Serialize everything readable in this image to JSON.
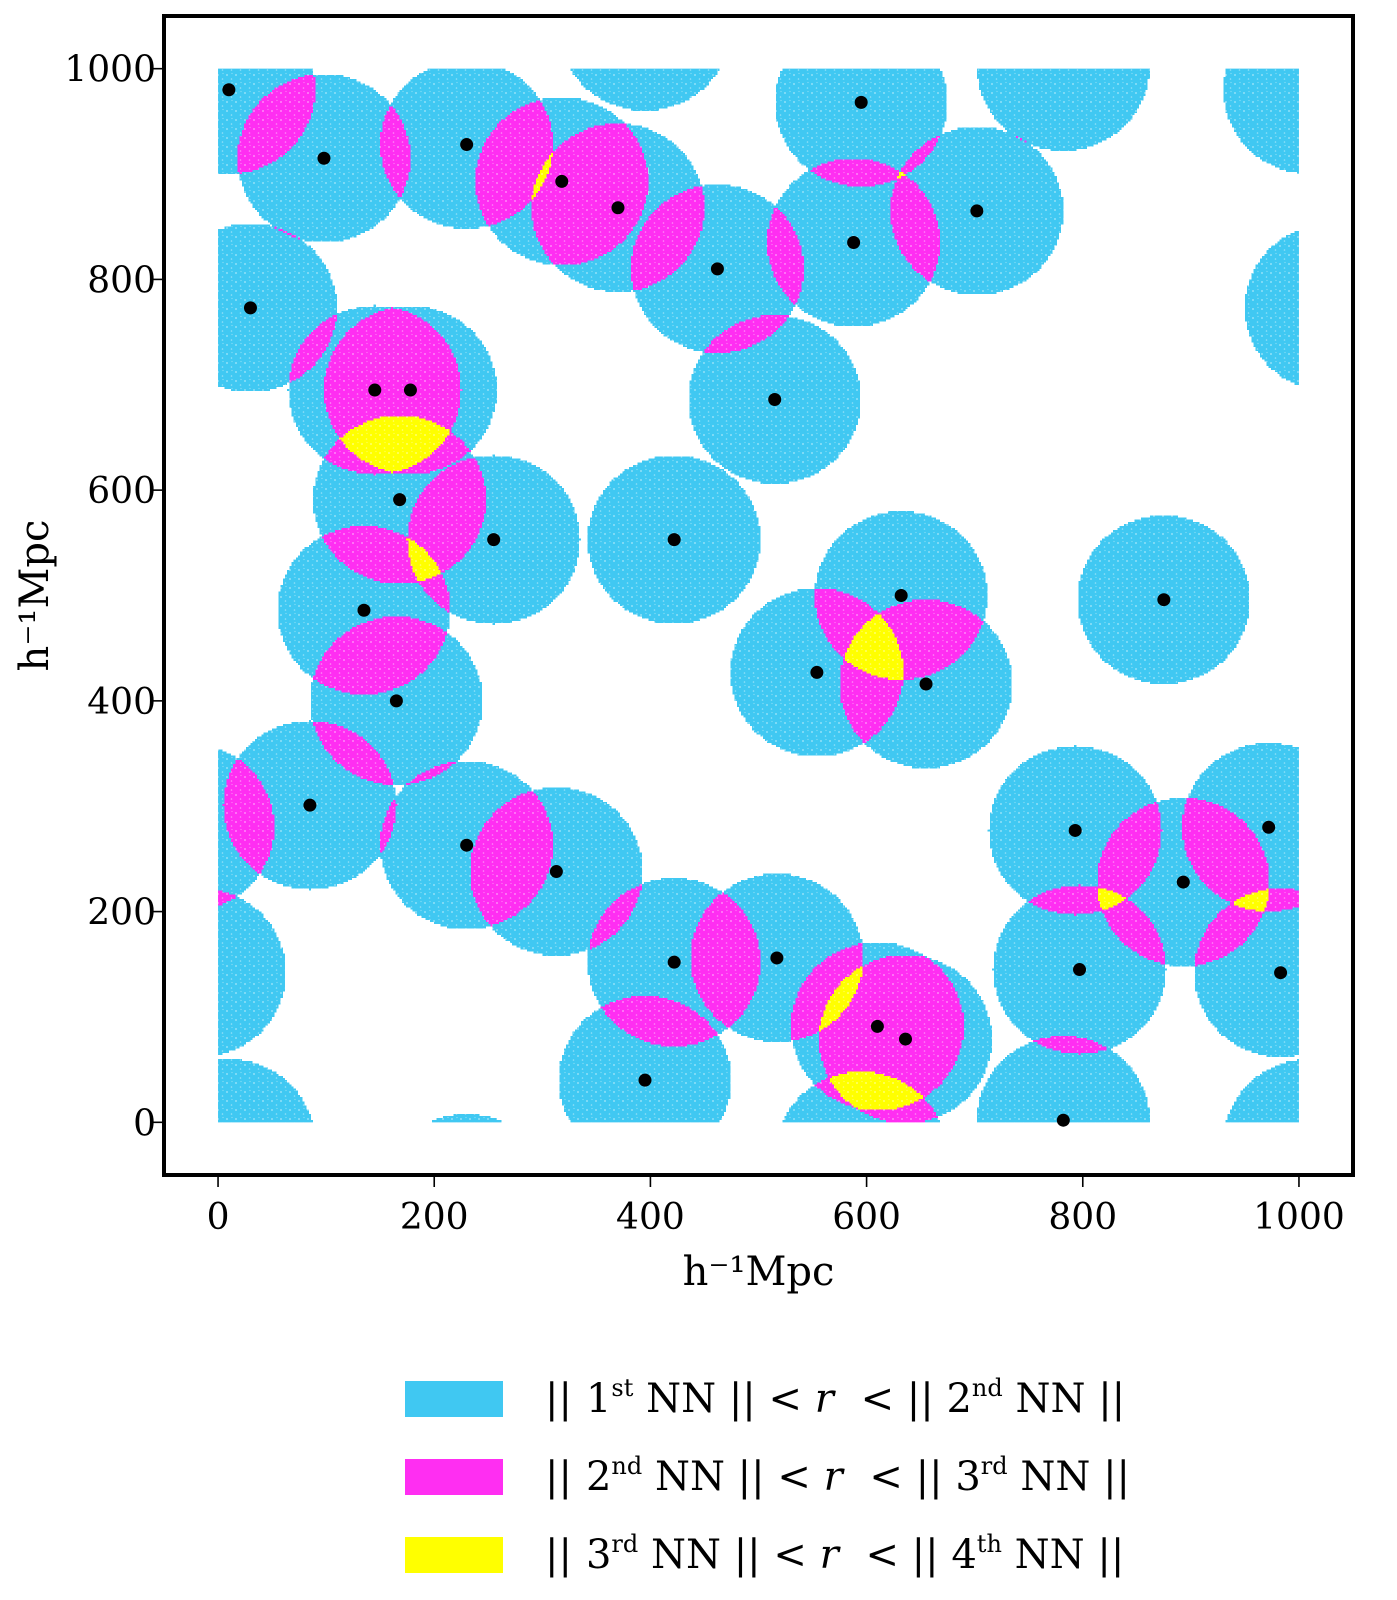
{
  "chart_data": {
    "type": "scatter",
    "title": "",
    "xlabel": "h⁻¹Mpc",
    "ylabel": "h⁻¹Mpc",
    "xlim": [
      -50,
      1050
    ],
    "ylim": [
      -50,
      1050
    ],
    "xticks": [
      "0",
      "200",
      "400",
      "600",
      "800",
      "1000"
    ],
    "yticks": [
      "0",
      "200",
      "400",
      "600",
      "800",
      "1000"
    ],
    "xtick_values": [
      0,
      200,
      400,
      600,
      800,
      1000
    ],
    "ytick_values": [
      0,
      200,
      400,
      600,
      800,
      1000
    ],
    "box": [
      0,
      1000
    ],
    "sphere_radius": 80,
    "grid": false,
    "colors": {
      "nn1": "#40c8f2",
      "nn2": "#ff2ef2",
      "nn3": "#ffff00",
      "points": "#000000",
      "background": "#ffffff"
    },
    "legend": [
      {
        "color": "#40c8f2",
        "a_ord": "1",
        "a_suf": "st",
        "b_ord": "2",
        "b_suf": "nd"
      },
      {
        "color": "#ff2ef2",
        "a_ord": "2",
        "a_suf": "nd",
        "b_ord": "3",
        "b_suf": "rd"
      },
      {
        "color": "#ffff00",
        "a_ord": "3",
        "a_suf": "rd",
        "b_ord": "4",
        "b_suf": "th"
      }
    ],
    "legend_words": {
      "open": "||",
      "nn": "NN",
      "lt": "<",
      "var": "r"
    },
    "points": [
      {
        "x": 10,
        "y": 980
      },
      {
        "x": 98,
        "y": 915
      },
      {
        "x": 230,
        "y": 928
      },
      {
        "x": 318,
        "y": 893
      },
      {
        "x": 370,
        "y": 868
      },
      {
        "x": 595,
        "y": 968
      },
      {
        "x": 702,
        "y": 865
      },
      {
        "x": 588,
        "y": 835
      },
      {
        "x": 462,
        "y": 810
      },
      {
        "x": 30,
        "y": 773
      },
      {
        "x": 145,
        "y": 695
      },
      {
        "x": 178,
        "y": 695
      },
      {
        "x": 515,
        "y": 686
      },
      {
        "x": 168,
        "y": 591
      },
      {
        "x": 255,
        "y": 553
      },
      {
        "x": 422,
        "y": 553
      },
      {
        "x": 632,
        "y": 500
      },
      {
        "x": 875,
        "y": 496
      },
      {
        "x": 135,
        "y": 486
      },
      {
        "x": 554,
        "y": 427
      },
      {
        "x": 655,
        "y": 416
      },
      {
        "x": 165,
        "y": 400
      },
      {
        "x": 85,
        "y": 301
      },
      {
        "x": 793,
        "y": 277
      },
      {
        "x": 972,
        "y": 280
      },
      {
        "x": 230,
        "y": 263
      },
      {
        "x": 313,
        "y": 238
      },
      {
        "x": 893,
        "y": 228
      },
      {
        "x": 422,
        "y": 152
      },
      {
        "x": 517,
        "y": 156
      },
      {
        "x": 797,
        "y": 145
      },
      {
        "x": 983,
        "y": 142
      },
      {
        "x": 610,
        "y": 91
      },
      {
        "x": 636,
        "y": 79
      },
      {
        "x": 395,
        "y": 40
      },
      {
        "x": 782,
        "y": 2
      }
    ]
  }
}
